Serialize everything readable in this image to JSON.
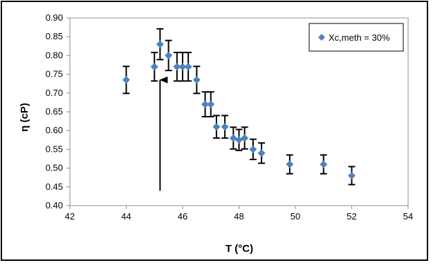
{
  "chart_data": {
    "type": "scatter",
    "xlabel": "T (°C)",
    "ylabel": "η (cP)",
    "xlim": [
      42,
      54
    ],
    "ylim": [
      0.4,
      0.9
    ],
    "xticks": [
      "42",
      "44",
      "46",
      "48",
      "50",
      "52",
      "54"
    ],
    "yticks": [
      "0.40",
      "0.45",
      "0.50",
      "0.55",
      "0.60",
      "0.65",
      "0.70",
      "0.75",
      "0.80",
      "0.85",
      "0.90"
    ],
    "grid": false,
    "legend_position": "top-right",
    "series": [
      {
        "name": "Xc,meth = 30%",
        "color": "#4f81bd",
        "marker": "diamond",
        "points": [
          {
            "x": 44.0,
            "y": 0.735,
            "err": 0.036
          },
          {
            "x": 45.0,
            "y": 0.77,
            "err": 0.038
          },
          {
            "x": 45.2,
            "y": 0.83,
            "err": 0.041
          },
          {
            "x": 45.5,
            "y": 0.8,
            "err": 0.04
          },
          {
            "x": 45.8,
            "y": 0.77,
            "err": 0.038
          },
          {
            "x": 46.0,
            "y": 0.77,
            "err": 0.038
          },
          {
            "x": 46.2,
            "y": 0.77,
            "err": 0.038
          },
          {
            "x": 46.5,
            "y": 0.735,
            "err": 0.036
          },
          {
            "x": 46.8,
            "y": 0.67,
            "err": 0.033
          },
          {
            "x": 47.0,
            "y": 0.67,
            "err": 0.033
          },
          {
            "x": 47.2,
            "y": 0.61,
            "err": 0.03
          },
          {
            "x": 47.5,
            "y": 0.61,
            "err": 0.03
          },
          {
            "x": 47.8,
            "y": 0.58,
            "err": 0.029
          },
          {
            "x": 48.0,
            "y": 0.575,
            "err": 0.028
          },
          {
            "x": 48.2,
            "y": 0.58,
            "err": 0.029
          },
          {
            "x": 48.5,
            "y": 0.55,
            "err": 0.027
          },
          {
            "x": 48.8,
            "y": 0.54,
            "err": 0.027
          },
          {
            "x": 49.8,
            "y": 0.51,
            "err": 0.025
          },
          {
            "x": 51.0,
            "y": 0.51,
            "err": 0.025
          },
          {
            "x": 52.0,
            "y": 0.48,
            "err": 0.024
          }
        ]
      }
    ],
    "annotations": [
      {
        "type": "arrow",
        "x": 45.2,
        "y_from": 0.44,
        "y_to": 0.735,
        "color": "#000000"
      }
    ]
  }
}
